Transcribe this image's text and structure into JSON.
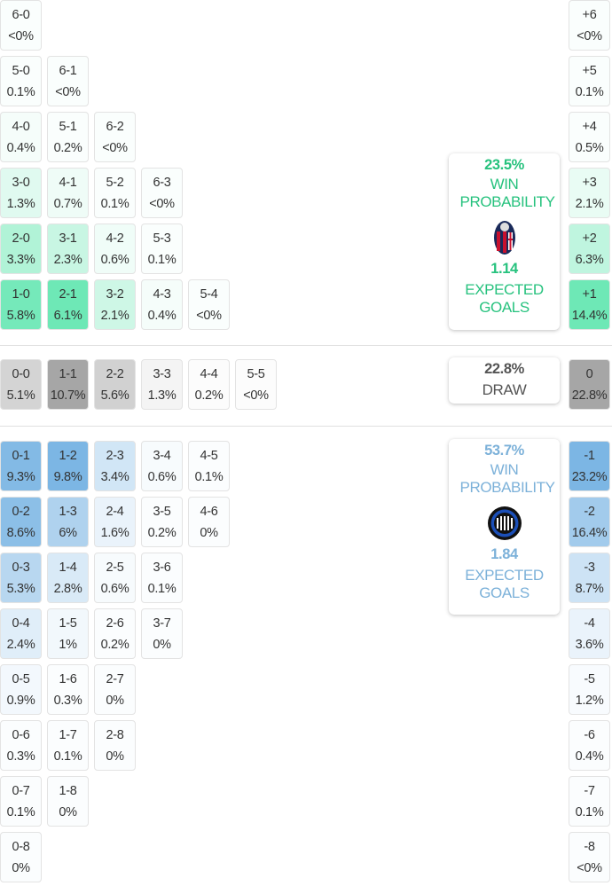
{
  "colors": {
    "home": "#6ee8b6",
    "draw": "#a6a6a6",
    "away": "#7cb6e4",
    "home_text": "#27c27e",
    "away_text": "#7cb1d9",
    "draw_text": "#555555"
  },
  "home": {
    "rows": [
      [
        [
          "6-0",
          "<0%",
          0
        ]
      ],
      [
        [
          "5-0",
          "0.1%",
          0.1
        ],
        [
          "6-1",
          "<0%",
          0
        ]
      ],
      [
        [
          "4-0",
          "0.4%",
          0.4
        ],
        [
          "5-1",
          "0.2%",
          0.2
        ],
        [
          "6-2",
          "<0%",
          0
        ]
      ],
      [
        [
          "3-0",
          "1.3%",
          1.3
        ],
        [
          "4-1",
          "0.7%",
          0.7
        ],
        [
          "5-2",
          "0.1%",
          0.1
        ],
        [
          "6-3",
          "<0%",
          0
        ]
      ],
      [
        [
          "2-0",
          "3.3%",
          3.3
        ],
        [
          "3-1",
          "2.3%",
          2.3
        ],
        [
          "4-2",
          "0.6%",
          0.6
        ],
        [
          "5-3",
          "0.1%",
          0.1
        ]
      ],
      [
        [
          "1-0",
          "5.8%",
          5.8
        ],
        [
          "2-1",
          "6.1%",
          6.1
        ],
        [
          "3-2",
          "2.1%",
          2.1
        ],
        [
          "4-3",
          "0.4%",
          0.4
        ],
        [
          "5-4",
          "<0%",
          0
        ]
      ]
    ],
    "margins": [
      [
        "+6",
        "<0%",
        0
      ],
      [
        "+5",
        "0.1%",
        0.1
      ],
      [
        "+4",
        "0.5%",
        0.5
      ],
      [
        "+3",
        "2.1%",
        2.1
      ],
      [
        "+2",
        "6.3%",
        6.3
      ],
      [
        "+1",
        "14.4%",
        14.4
      ]
    ],
    "win_pct": "23.5%",
    "win_label": "WIN PROBABILITY",
    "xg": "1.14",
    "xg_label": "EXPECTED GOALS",
    "logo_icon": "bologna-crest-icon"
  },
  "draw": {
    "rows": [
      [
        [
          "0-0",
          "5.1%",
          5.1
        ],
        [
          "1-1",
          "10.7%",
          10.7
        ],
        [
          "2-2",
          "5.6%",
          5.6
        ],
        [
          "3-3",
          "1.3%",
          1.3
        ],
        [
          "4-4",
          "0.2%",
          0.2
        ],
        [
          "5-5",
          "<0%",
          0
        ]
      ]
    ],
    "margins": [
      [
        "0",
        "22.8%",
        22.8
      ]
    ],
    "pct": "22.8%",
    "label": "DRAW"
  },
  "away": {
    "rows": [
      [
        [
          "0-1",
          "9.3%",
          9.3
        ],
        [
          "1-2",
          "9.8%",
          9.8
        ],
        [
          "2-3",
          "3.4%",
          3.4
        ],
        [
          "3-4",
          "0.6%",
          0.6
        ],
        [
          "4-5",
          "0.1%",
          0.1
        ]
      ],
      [
        [
          "0-2",
          "8.6%",
          8.6
        ],
        [
          "1-3",
          "6%",
          6
        ],
        [
          "2-4",
          "1.6%",
          1.6
        ],
        [
          "3-5",
          "0.2%",
          0.2
        ],
        [
          "4-6",
          "0%",
          0
        ]
      ],
      [
        [
          "0-3",
          "5.3%",
          5.3
        ],
        [
          "1-4",
          "2.8%",
          2.8
        ],
        [
          "2-5",
          "0.6%",
          0.6
        ],
        [
          "3-6",
          "0.1%",
          0.1
        ]
      ],
      [
        [
          "0-4",
          "2.4%",
          2.4
        ],
        [
          "1-5",
          "1%",
          1
        ],
        [
          "2-6",
          "0.2%",
          0.2
        ],
        [
          "3-7",
          "0%",
          0
        ]
      ],
      [
        [
          "0-5",
          "0.9%",
          0.9
        ],
        [
          "1-6",
          "0.3%",
          0.3
        ],
        [
          "2-7",
          "0%",
          0
        ]
      ],
      [
        [
          "0-6",
          "0.3%",
          0.3
        ],
        [
          "1-7",
          "0.1%",
          0.1
        ],
        [
          "2-8",
          "0%",
          0
        ]
      ],
      [
        [
          "0-7",
          "0.1%",
          0.1
        ],
        [
          "1-8",
          "0%",
          0
        ]
      ],
      [
        [
          "0-8",
          "0%",
          0
        ]
      ]
    ],
    "margins": [
      [
        "-1",
        "23.2%",
        23.2
      ],
      [
        "-2",
        "16.4%",
        16.4
      ],
      [
        "-3",
        "8.7%",
        8.7
      ],
      [
        "-4",
        "3.6%",
        3.6
      ],
      [
        "-5",
        "1.2%",
        1.2
      ],
      [
        "-6",
        "0.4%",
        0.4
      ],
      [
        "-7",
        "0.1%",
        0.1
      ],
      [
        "-8",
        "<0%",
        0
      ]
    ],
    "win_pct": "53.7%",
    "win_label": "WIN PROBABILITY",
    "xg": "1.84",
    "xg_label": "EXPECTED GOALS",
    "logo_icon": "inter-crest-icon"
  }
}
